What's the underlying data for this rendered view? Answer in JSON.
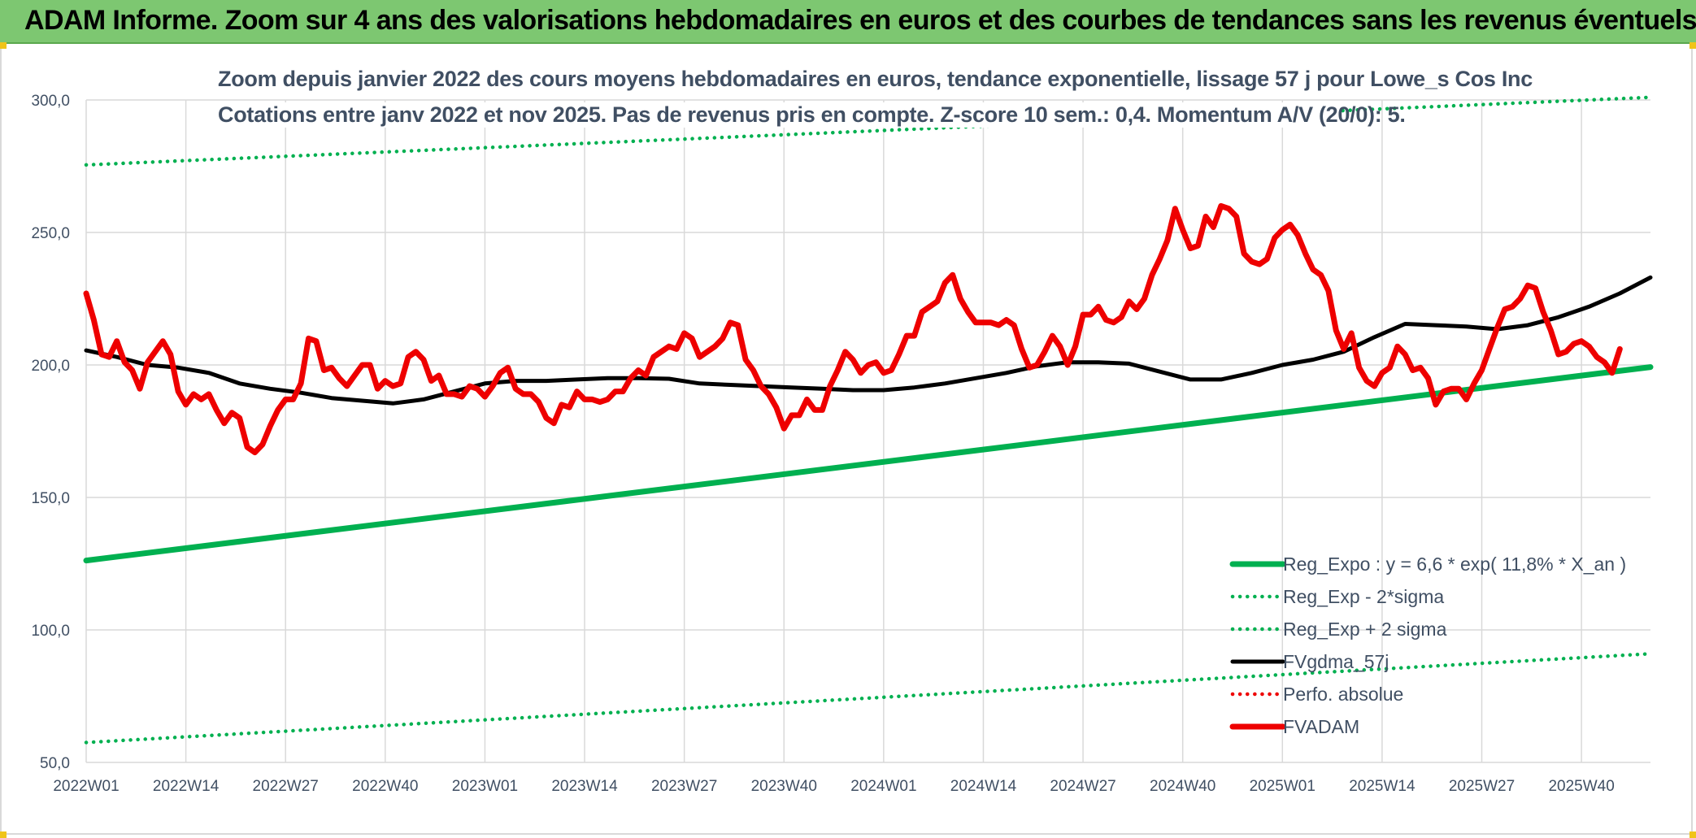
{
  "banner": {
    "title": "ADAM Informe. Zoom sur 4 ans des valorisations hebdomadaires en euros et des courbes de tendances sans les revenus éventuels"
  },
  "colors": {
    "banner_bg": "#7dc771",
    "reg_expo": "#00b050",
    "fvgdma": "#000000",
    "fvadam": "#ee0000",
    "perfo": "#ee0000",
    "grid": "#d9d9d9",
    "text": "#404f63"
  },
  "chart_data": {
    "type": "line",
    "title": "Zoom depuis janvier 2022 des cours moyens hebdomadaires en euros, tendance exponentielle, lissage 57 j pour Lowe_s Cos Inc",
    "subtitle": "Cotations entre janv 2022 et nov 2025. Pas de revenus pris en compte. Z-score 10 sem.: 0,4. Momentum A/V (20/0): 5.",
    "ylim": [
      50,
      300
    ],
    "y_ticks": [
      "300,0",
      "250,0",
      "200,0",
      "150,0",
      "100,0",
      "50,0"
    ],
    "x_ticks": [
      "2022W01",
      "2022W14",
      "2022W27",
      "2022W40",
      "2023W01",
      "2023W14",
      "2023W27",
      "2023W40",
      "2024W01",
      "2024W14",
      "2024W27",
      "2024W40",
      "2025W01",
      "2025W14",
      "2025W27",
      "2025W40"
    ],
    "legend_position": "bottom-right",
    "series": [
      {
        "name": "Reg_Expo : y = 6,6 * exp( 11,8% *  X_an )",
        "style": "solid-thick",
        "color": "#00b050",
        "points": [
          [
            0,
            126.2
          ],
          [
            204,
            199.2
          ]
        ]
      },
      {
        "name": "Reg_Exp - 2*sigma",
        "style": "dotted",
        "color": "#00b050",
        "points": [
          [
            0,
            57.5
          ],
          [
            204,
            91
          ]
        ]
      },
      {
        "name": "Reg_Exp + 2 sigma",
        "style": "dotted",
        "color": "#00b050",
        "points": [
          [
            0,
            275.5
          ],
          [
            204,
            301
          ]
        ]
      },
      {
        "name": "FVgdma_57j",
        "style": "solid",
        "color": "#000000",
        "points": [
          [
            0,
            205.5
          ],
          [
            4,
            203
          ],
          [
            8,
            200
          ],
          [
            12,
            199
          ],
          [
            16,
            197
          ],
          [
            20,
            193
          ],
          [
            24,
            191
          ],
          [
            28,
            189.5
          ],
          [
            32,
            187.5
          ],
          [
            36,
            186.5
          ],
          [
            40,
            185.5
          ],
          [
            44,
            187
          ],
          [
            48,
            190
          ],
          [
            52,
            193
          ],
          [
            56,
            194
          ],
          [
            60,
            194
          ],
          [
            64,
            194.5
          ],
          [
            68,
            195
          ],
          [
            72,
            195
          ],
          [
            76,
            194.8
          ],
          [
            80,
            193
          ],
          [
            84,
            192.5
          ],
          [
            88,
            192
          ],
          [
            92,
            191.5
          ],
          [
            96,
            191
          ],
          [
            100,
            190.5
          ],
          [
            104,
            190.5
          ],
          [
            108,
            191.5
          ],
          [
            112,
            193
          ],
          [
            116,
            195
          ],
          [
            120,
            197
          ],
          [
            124,
            199.5
          ],
          [
            128,
            201
          ],
          [
            132,
            201
          ],
          [
            136,
            200.5
          ],
          [
            140,
            197.5
          ],
          [
            144,
            194.5
          ],
          [
            148,
            194.5
          ],
          [
            152,
            197
          ],
          [
            156,
            200
          ],
          [
            160,
            202
          ],
          [
            164,
            205
          ],
          [
            168,
            210.5
          ],
          [
            172,
            215.5
          ],
          [
            176,
            215
          ],
          [
            180,
            214.5
          ],
          [
            184,
            213.5
          ],
          [
            188,
            215
          ],
          [
            192,
            218
          ],
          [
            196,
            222
          ],
          [
            200,
            227
          ],
          [
            204,
            233
          ]
        ]
      },
      {
        "name": "Perfo. absolue",
        "style": "dotted",
        "color": "#ee0000",
        "points": []
      },
      {
        "name": "FVADAM",
        "style": "solid-thick",
        "color": "#ee0000",
        "points": [
          [
            0,
            227
          ],
          [
            1,
            217
          ],
          [
            2,
            204
          ],
          [
            3,
            203
          ],
          [
            4,
            209
          ],
          [
            5,
            201
          ],
          [
            6,
            198
          ],
          [
            7,
            191
          ],
          [
            8,
            201
          ],
          [
            9,
            205
          ],
          [
            10,
            209
          ],
          [
            11,
            204
          ],
          [
            12,
            190
          ],
          [
            13,
            185
          ],
          [
            14,
            189
          ],
          [
            15,
            187
          ],
          [
            16,
            189
          ],
          [
            17,
            183
          ],
          [
            18,
            178
          ],
          [
            19,
            182
          ],
          [
            20,
            180
          ],
          [
            21,
            169
          ],
          [
            22,
            167
          ],
          [
            23,
            170
          ],
          [
            24,
            177
          ],
          [
            25,
            183
          ],
          [
            26,
            187
          ],
          [
            27,
            187
          ],
          [
            28,
            193
          ],
          [
            29,
            210
          ],
          [
            30,
            209
          ],
          [
            31,
            198
          ],
          [
            32,
            199
          ],
          [
            33,
            195
          ],
          [
            34,
            192
          ],
          [
            35,
            196
          ],
          [
            36,
            200
          ],
          [
            37,
            200
          ],
          [
            38,
            191
          ],
          [
            39,
            194
          ],
          [
            40,
            192
          ],
          [
            41,
            193
          ],
          [
            42,
            203
          ],
          [
            43,
            205
          ],
          [
            44,
            202
          ],
          [
            45,
            194
          ],
          [
            46,
            196
          ],
          [
            47,
            189
          ],
          [
            48,
            189
          ],
          [
            49,
            188
          ],
          [
            50,
            192
          ],
          [
            51,
            191
          ],
          [
            52,
            188
          ],
          [
            53,
            192
          ],
          [
            54,
            197
          ],
          [
            55,
            199
          ],
          [
            56,
            191
          ],
          [
            57,
            189
          ],
          [
            58,
            189
          ],
          [
            59,
            186
          ],
          [
            60,
            180
          ],
          [
            61,
            178
          ],
          [
            62,
            185
          ],
          [
            63,
            184
          ],
          [
            64,
            190
          ],
          [
            65,
            187
          ],
          [
            66,
            187
          ],
          [
            67,
            186
          ],
          [
            68,
            187
          ],
          [
            69,
            190
          ],
          [
            70,
            190
          ],
          [
            71,
            195
          ],
          [
            72,
            198
          ],
          [
            73,
            196
          ],
          [
            74,
            203
          ],
          [
            75,
            205
          ],
          [
            76,
            207
          ],
          [
            77,
            206
          ],
          [
            78,
            212
          ],
          [
            79,
            210
          ],
          [
            80,
            203
          ],
          [
            81,
            205
          ],
          [
            82,
            207
          ],
          [
            83,
            210
          ],
          [
            84,
            216
          ],
          [
            85,
            215
          ],
          [
            86,
            202
          ],
          [
            87,
            198
          ],
          [
            88,
            192
          ],
          [
            89,
            189
          ],
          [
            90,
            184
          ],
          [
            91,
            176
          ],
          [
            92,
            181
          ],
          [
            93,
            181
          ],
          [
            94,
            187
          ],
          [
            95,
            183
          ],
          [
            96,
            183
          ],
          [
            97,
            192
          ],
          [
            98,
            198
          ],
          [
            99,
            205
          ],
          [
            100,
            202
          ],
          [
            101,
            197
          ],
          [
            102,
            200
          ],
          [
            103,
            201
          ],
          [
            104,
            197
          ],
          [
            105,
            198
          ],
          [
            106,
            204
          ],
          [
            107,
            211
          ],
          [
            108,
            211
          ],
          [
            109,
            220
          ],
          [
            110,
            222
          ],
          [
            111,
            224
          ],
          [
            112,
            231
          ],
          [
            113,
            234
          ],
          [
            114,
            225
          ],
          [
            115,
            220
          ],
          [
            116,
            216
          ],
          [
            117,
            216
          ],
          [
            118,
            216
          ],
          [
            119,
            215
          ],
          [
            120,
            217
          ],
          [
            121,
            215
          ],
          [
            122,
            206
          ],
          [
            123,
            199
          ],
          [
            124,
            200
          ],
          [
            125,
            205
          ],
          [
            126,
            211
          ],
          [
            127,
            207
          ],
          [
            128,
            200
          ],
          [
            129,
            207
          ],
          [
            130,
            219
          ],
          [
            131,
            219
          ],
          [
            132,
            222
          ],
          [
            133,
            217
          ],
          [
            134,
            216
          ],
          [
            135,
            218
          ],
          [
            136,
            224
          ],
          [
            137,
            221
          ],
          [
            138,
            225
          ],
          [
            139,
            234
          ],
          [
            140,
            240
          ],
          [
            141,
            247
          ],
          [
            142,
            259
          ],
          [
            143,
            251
          ],
          [
            144,
            244
          ],
          [
            145,
            245
          ],
          [
            146,
            256
          ],
          [
            147,
            252
          ],
          [
            148,
            260
          ],
          [
            149,
            259
          ],
          [
            150,
            256
          ],
          [
            151,
            242
          ],
          [
            152,
            239
          ],
          [
            153,
            238
          ],
          [
            154,
            240
          ],
          [
            155,
            248
          ],
          [
            156,
            251
          ],
          [
            157,
            253
          ],
          [
            158,
            249
          ],
          [
            159,
            242
          ],
          [
            160,
            236
          ],
          [
            161,
            234
          ],
          [
            162,
            228
          ],
          [
            163,
            213
          ],
          [
            164,
            206
          ],
          [
            165,
            212
          ],
          [
            166,
            199
          ],
          [
            167,
            194
          ],
          [
            168,
            192
          ],
          [
            169,
            197
          ],
          [
            170,
            199
          ],
          [
            171,
            207
          ],
          [
            172,
            204
          ],
          [
            173,
            198
          ],
          [
            174,
            199
          ],
          [
            175,
            195
          ],
          [
            176,
            185
          ],
          [
            177,
            190
          ],
          [
            178,
            191
          ],
          [
            179,
            191
          ],
          [
            180,
            187
          ],
          [
            181,
            193
          ],
          [
            182,
            198
          ],
          [
            183,
            206
          ],
          [
            184,
            214
          ],
          [
            185,
            221
          ],
          [
            186,
            222
          ],
          [
            187,
            225
          ],
          [
            188,
            230
          ],
          [
            189,
            229
          ],
          [
            190,
            220
          ],
          [
            191,
            213
          ],
          [
            192,
            204
          ],
          [
            193,
            205
          ],
          [
            194,
            208
          ],
          [
            195,
            209
          ],
          [
            196,
            207
          ],
          [
            197,
            203
          ],
          [
            198,
            201
          ],
          [
            199,
            197
          ],
          [
            200,
            206
          ]
        ]
      }
    ]
  }
}
